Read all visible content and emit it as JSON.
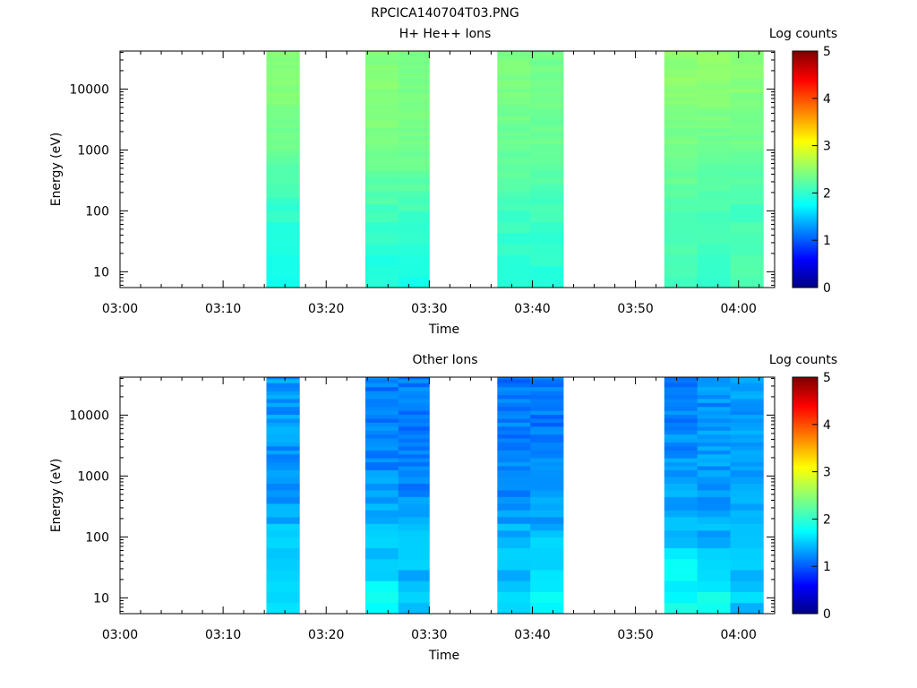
{
  "figure_title": "RPCICA140704T03.PNG",
  "chart_data": [
    {
      "type": "heatmap",
      "title": "H+ He++ Ions",
      "xlabel": "Time",
      "ylabel": "Energy (eV)",
      "x_ticks": [
        "03:00",
        "03:10",
        "03:20",
        "03:30",
        "03:40",
        "03:50",
        "04:00"
      ],
      "x_range": [
        "03:00",
        "04:03.5"
      ],
      "y_ticks": [
        "10",
        "100",
        "1000",
        "10000"
      ],
      "y_scale": "log",
      "y_range": [
        5.5,
        42000
      ],
      "colorbar": {
        "label": "Log counts",
        "range": [
          0,
          5
        ],
        "ticks": [
          "0",
          "1",
          "2",
          "3",
          "4",
          "5"
        ]
      },
      "grid": false,
      "time_columns": [
        {
          "start": "03:14.2",
          "end": "03:17.4",
          "log_counts_by_energy": {
            "10": 1.9,
            "100": 2.0,
            "1000": 2.3,
            "10000": 2.45
          }
        },
        {
          "start": "03:23.8",
          "end": "03:27.0",
          "log_counts_by_energy": {
            "10": 1.9,
            "100": 2.1,
            "1000": 2.4,
            "10000": 2.45
          }
        },
        {
          "start": "03:27.0",
          "end": "03:30.0",
          "log_counts_by_energy": {
            "10": 1.9,
            "100": 2.1,
            "1000": 2.35,
            "10000": 2.4
          }
        },
        {
          "start": "03:36.6",
          "end": "03:39.8",
          "log_counts_by_energy": {
            "10": 1.95,
            "100": 2.1,
            "1000": 2.3,
            "10000": 2.4
          }
        },
        {
          "start": "03:39.8",
          "end": "03:43.0",
          "log_counts_by_energy": {
            "10": 1.95,
            "100": 2.1,
            "1000": 2.3,
            "10000": 2.35
          }
        },
        {
          "start": "03:52.8",
          "end": "03:56.0",
          "log_counts_by_energy": {
            "10": 2.1,
            "100": 2.2,
            "1000": 2.35,
            "10000": 2.5
          }
        },
        {
          "start": "03:56.0",
          "end": "03:59.2",
          "log_counts_by_energy": {
            "10": 2.0,
            "100": 2.15,
            "1000": 2.3,
            "10000": 2.5
          }
        },
        {
          "start": "03:59.2",
          "end": "04:02.4",
          "log_counts_by_energy": {
            "10": 2.2,
            "100": 2.1,
            "1000": 2.35,
            "10000": 2.45
          }
        }
      ]
    },
    {
      "type": "heatmap",
      "title": "Other Ions",
      "xlabel": "Time",
      "ylabel": "Energy (eV)",
      "x_ticks": [
        "03:00",
        "03:10",
        "03:20",
        "03:30",
        "03:40",
        "03:50",
        "04:00"
      ],
      "x_range": [
        "03:00",
        "04:03.5"
      ],
      "y_ticks": [
        "10",
        "100",
        "1000",
        "10000"
      ],
      "y_scale": "log",
      "y_range": [
        5.5,
        42000
      ],
      "colorbar": {
        "label": "Log counts",
        "range": [
          0,
          5
        ],
        "ticks": [
          "0",
          "1",
          "2",
          "3",
          "4",
          "5"
        ]
      },
      "grid": false,
      "time_columns": [
        {
          "start": "03:14.2",
          "end": "03:17.4",
          "log_counts_by_energy": {
            "10": 1.65,
            "100": 1.45,
            "1000": 1.25,
            "10000": 1.3
          }
        },
        {
          "start": "03:23.8",
          "end": "03:27.0",
          "log_counts_by_energy": {
            "10": 1.7,
            "100": 1.5,
            "1000": 1.25,
            "10000": 1.15
          }
        },
        {
          "start": "03:27.0",
          "end": "03:30.0",
          "log_counts_by_energy": {
            "10": 1.5,
            "100": 1.4,
            "1000": 1.2,
            "10000": 1.15
          }
        },
        {
          "start": "03:36.6",
          "end": "03:39.8",
          "log_counts_by_energy": {
            "10": 1.5,
            "100": 1.4,
            "1000": 1.2,
            "10000": 1.15
          }
        },
        {
          "start": "03:39.8",
          "end": "03:43.0",
          "log_counts_by_energy": {
            "10": 1.7,
            "100": 1.45,
            "1000": 1.2,
            "10000": 1.15
          }
        },
        {
          "start": "03:52.8",
          "end": "03:56.0",
          "log_counts_by_energy": {
            "10": 1.85,
            "100": 1.5,
            "1000": 1.3,
            "10000": 1.2
          }
        },
        {
          "start": "03:56.0",
          "end": "03:59.2",
          "log_counts_by_energy": {
            "10": 1.85,
            "100": 1.4,
            "1000": 1.3,
            "10000": 1.25
          }
        },
        {
          "start": "03:59.2",
          "end": "04:02.4",
          "log_counts_by_energy": {
            "10": 1.5,
            "100": 1.45,
            "1000": 1.35,
            "10000": 1.3
          }
        }
      ]
    }
  ]
}
